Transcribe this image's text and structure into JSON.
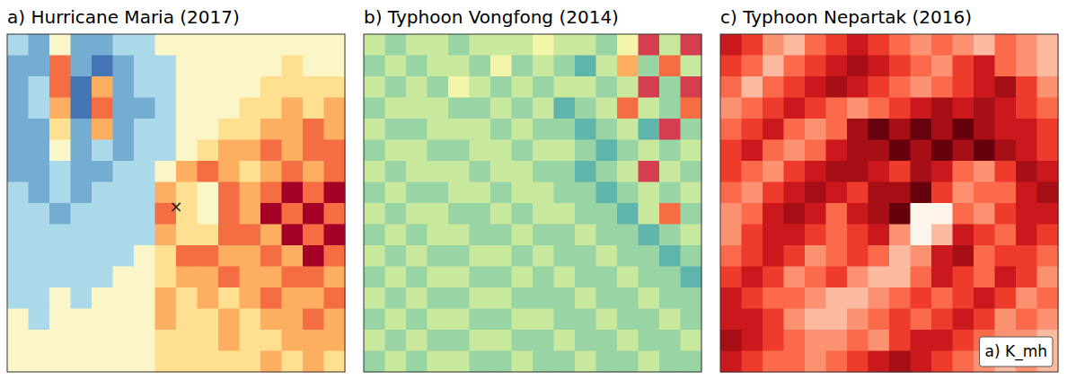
{
  "chart_data": [
    {
      "type": "heatmap",
      "title": "a) Hurricane Maria (2017)",
      "color": "RdYlBu_r",
      "clim": [
        0,
        8
      ],
      "tick_labels": false,
      "annotations": [
        {
          "text": "×",
          "x": 8,
          "y": 8.2
        }
      ],
      "cells": [
        [
          3,
          2,
          4,
          2,
          2,
          3,
          3,
          4,
          4,
          4,
          4,
          4,
          4,
          4,
          4,
          4
        ],
        [
          2,
          2,
          7,
          2,
          1,
          2,
          3,
          3,
          4,
          4,
          4,
          4,
          4,
          5,
          4,
          4
        ],
        [
          2,
          3,
          7,
          1,
          6,
          2,
          3,
          3,
          4,
          4,
          4,
          4,
          5,
          5,
          5,
          5
        ],
        [
          2,
          3,
          6,
          1,
          7,
          2,
          2,
          3,
          4,
          4,
          4,
          5,
          5,
          6,
          5,
          6
        ],
        [
          2,
          2,
          5,
          2,
          6,
          2,
          3,
          3,
          4,
          4,
          5,
          5,
          6,
          6,
          7,
          6
        ],
        [
          2,
          2,
          4,
          2,
          3,
          2,
          3,
          3,
          4,
          5,
          6,
          6,
          7,
          6,
          7,
          7
        ],
        [
          2,
          2,
          3,
          2,
          2,
          3,
          3,
          4,
          6,
          7,
          6,
          5,
          6,
          7,
          6,
          7
        ],
        [
          3,
          2,
          3,
          2,
          3,
          3,
          3,
          6,
          5,
          4,
          7,
          6,
          7,
          8,
          7,
          8
        ],
        [
          3,
          3,
          2,
          3,
          3,
          3,
          3,
          7,
          5,
          4,
          7,
          6,
          8,
          7,
          8,
          7
        ],
        [
          3,
          3,
          3,
          3,
          3,
          3,
          3,
          6,
          5,
          5,
          7,
          7,
          6,
          8,
          7,
          8
        ],
        [
          3,
          3,
          3,
          3,
          3,
          3,
          4,
          5,
          7,
          7,
          6,
          6,
          7,
          6,
          8,
          7
        ],
        [
          3,
          3,
          3,
          3,
          3,
          4,
          4,
          5,
          6,
          6,
          7,
          6,
          6,
          7,
          7,
          6
        ],
        [
          3,
          3,
          4,
          3,
          4,
          4,
          4,
          6,
          5,
          6,
          5,
          6,
          7,
          6,
          6,
          7
        ],
        [
          4,
          3,
          4,
          4,
          4,
          4,
          4,
          6,
          5,
          5,
          6,
          5,
          6,
          6,
          7,
          6
        ],
        [
          4,
          4,
          4,
          4,
          4,
          4,
          4,
          5,
          5,
          5,
          6,
          5,
          5,
          6,
          6,
          6
        ],
        [
          4,
          4,
          4,
          4,
          4,
          4,
          4,
          5,
          5,
          5,
          5,
          5,
          6,
          5,
          6,
          5
        ]
      ]
    },
    {
      "type": "heatmap",
      "title": "b) Typhoon Vongfong (2014)",
      "color": "Spectral",
      "clim": [
        0,
        8
      ],
      "tick_labels": false,
      "cells": [
        [
          5,
          6,
          5,
          5,
          6,
          5,
          5,
          5,
          4,
          5,
          5,
          6,
          4,
          1,
          5,
          1
        ],
        [
          6,
          5,
          6,
          5,
          5,
          6,
          4,
          6,
          5,
          6,
          7,
          5,
          3,
          6,
          2,
          5
        ],
        [
          5,
          6,
          5,
          6,
          4,
          5,
          6,
          5,
          6,
          5,
          5,
          6,
          5,
          1,
          6,
          1
        ],
        [
          6,
          5,
          5,
          5,
          6,
          6,
          5,
          6,
          5,
          7,
          6,
          5,
          2,
          5,
          6,
          2
        ],
        [
          5,
          6,
          6,
          5,
          5,
          5,
          6,
          5,
          6,
          6,
          7,
          6,
          5,
          7,
          1,
          6
        ],
        [
          6,
          5,
          5,
          6,
          6,
          5,
          5,
          6,
          5,
          5,
          6,
          7,
          6,
          5,
          6,
          5
        ],
        [
          5,
          6,
          5,
          5,
          5,
          6,
          5,
          5,
          6,
          6,
          7,
          6,
          5,
          1,
          5,
          6
        ],
        [
          6,
          5,
          6,
          6,
          5,
          5,
          6,
          5,
          5,
          6,
          6,
          7,
          6,
          5,
          6,
          5
        ],
        [
          5,
          6,
          5,
          5,
          6,
          6,
          5,
          6,
          5,
          5,
          6,
          6,
          7,
          5,
          2,
          6
        ],
        [
          6,
          5,
          6,
          5,
          5,
          6,
          6,
          5,
          6,
          6,
          5,
          6,
          6,
          7,
          6,
          5
        ],
        [
          5,
          6,
          5,
          6,
          6,
          5,
          5,
          6,
          5,
          6,
          6,
          5,
          6,
          6,
          7,
          6
        ],
        [
          6,
          5,
          6,
          5,
          5,
          6,
          6,
          5,
          6,
          5,
          6,
          6,
          5,
          6,
          6,
          7
        ],
        [
          5,
          6,
          5,
          6,
          6,
          5,
          5,
          6,
          6,
          6,
          5,
          6,
          6,
          5,
          6,
          6
        ],
        [
          6,
          5,
          6,
          5,
          5,
          6,
          6,
          5,
          5,
          6,
          6,
          5,
          6,
          6,
          5,
          6
        ],
        [
          5,
          6,
          5,
          6,
          6,
          5,
          5,
          6,
          6,
          5,
          6,
          6,
          5,
          6,
          6,
          5
        ],
        [
          6,
          5,
          6,
          5,
          5,
          6,
          6,
          5,
          6,
          6,
          5,
          6,
          6,
          5,
          6,
          6
        ]
      ]
    },
    {
      "type": "heatmap",
      "title": "c) Typhoon Nepartak (2016)",
      "color": "Reds",
      "clim": [
        0,
        8
      ],
      "tick_labels": false,
      "label": "a) K_mh",
      "cells": [
        [
          6,
          5,
          3,
          2,
          4,
          5,
          6,
          5,
          4,
          3,
          4,
          3,
          2,
          4,
          3,
          2
        ],
        [
          5,
          4,
          2,
          4,
          5,
          6,
          7,
          6,
          5,
          4,
          3,
          5,
          6,
          4,
          3,
          2
        ],
        [
          4,
          2,
          4,
          5,
          6,
          7,
          6,
          5,
          4,
          3,
          4,
          5,
          6,
          7,
          5,
          3
        ],
        [
          3,
          4,
          5,
          6,
          5,
          4,
          3,
          4,
          5,
          6,
          7,
          6,
          7,
          6,
          5,
          4
        ],
        [
          4,
          5,
          6,
          4,
          3,
          4,
          7,
          8,
          7,
          8,
          7,
          8,
          7,
          6,
          6,
          5
        ],
        [
          5,
          6,
          4,
          3,
          4,
          6,
          7,
          7,
          8,
          7,
          8,
          7,
          8,
          7,
          6,
          5
        ],
        [
          5,
          4,
          3,
          5,
          6,
          7,
          7,
          6,
          5,
          7,
          6,
          4,
          3,
          5,
          7,
          6
        ],
        [
          4,
          3,
          5,
          6,
          7,
          6,
          5,
          7,
          7,
          8,
          5,
          3,
          4,
          4,
          6,
          7
        ],
        [
          3,
          4,
          6,
          7,
          6,
          4,
          6,
          7,
          8,
          0,
          0,
          4,
          3,
          5,
          6,
          6
        ],
        [
          3,
          5,
          6,
          6,
          5,
          4,
          5,
          6,
          3,
          0,
          2,
          6,
          5,
          4,
          6,
          5
        ],
        [
          4,
          5,
          6,
          5,
          3,
          4,
          5,
          4,
          2,
          3,
          6,
          7,
          4,
          5,
          5,
          4
        ],
        [
          5,
          6,
          5,
          3,
          4,
          5,
          3,
          2,
          2,
          4,
          6,
          5,
          4,
          6,
          5,
          3
        ],
        [
          6,
          5,
          4,
          4,
          3,
          2,
          2,
          3,
          4,
          5,
          4,
          5,
          6,
          5,
          3,
          4
        ],
        [
          6,
          6,
          5,
          3,
          2,
          2,
          3,
          4,
          5,
          4,
          5,
          6,
          5,
          3,
          4,
          3
        ],
        [
          7,
          6,
          5,
          4,
          3,
          3,
          4,
          3,
          5,
          6,
          6,
          5,
          4,
          3,
          3,
          2
        ],
        [
          6,
          5,
          4,
          4,
          3,
          4,
          5,
          6,
          7,
          6,
          5,
          4,
          3,
          2,
          3,
          2
        ]
      ]
    }
  ]
}
